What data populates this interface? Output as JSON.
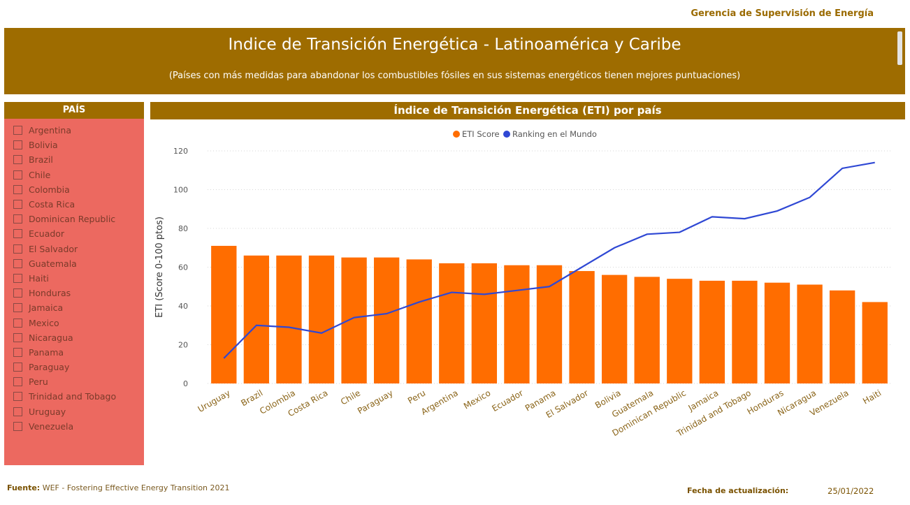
{
  "header": {
    "org": "Gerencia de Supervisión de Energía",
    "title": "Indice de Transición Energética - Latinoamérica y Caribe",
    "subtitle": "(Países con más medidas para abandonar los combustibles fósiles en sus sistemas energéticos tienen mejores puntuaciones)"
  },
  "slicer": {
    "title": "PAÍS",
    "items": [
      "Argentina",
      "Bolivia",
      "Brazil",
      "Chile",
      "Colombia",
      "Costa Rica",
      "Dominican Republic",
      "Ecuador",
      "El Salvador",
      "Guatemala",
      "Haiti",
      "Honduras",
      "Jamaica",
      "Mexico",
      "Nicaragua",
      "Panama",
      "Paraguay",
      "Peru",
      "Trinidad and Tobago",
      "Uruguay",
      "Venezuela"
    ]
  },
  "chart_header": "Índice de Transición Energética (ETI) por país",
  "chart_data": {
    "type": "bar",
    "categories": [
      "Uruguay",
      "Brazil",
      "Colombia",
      "Costa Rica",
      "Chile",
      "Paraguay",
      "Peru",
      "Argentina",
      "Mexico",
      "Ecuador",
      "Panama",
      "El Salvador",
      "Bolivia",
      "Guatemala",
      "Dominican Republic",
      "Jamaica",
      "Trinidad and Tobago",
      "Honduras",
      "Nicaragua",
      "Venezuela",
      "Haiti"
    ],
    "series": [
      {
        "name": "ETI Score",
        "type": "bar",
        "color": "#ff6d00",
        "values": [
          71,
          66,
          66,
          66,
          65,
          65,
          64,
          62,
          62,
          61,
          61,
          58,
          56,
          55,
          54,
          53,
          53,
          52,
          51,
          48,
          42
        ]
      },
      {
        "name": "Ranking en el Mundo",
        "type": "line",
        "color": "#2f48d4",
        "values": [
          13,
          30,
          29,
          26,
          34,
          36,
          42,
          47,
          46,
          48,
          50,
          60,
          70,
          77,
          78,
          86,
          85,
          89,
          96,
          111,
          114
        ]
      }
    ],
    "ylabel": "ETI (Score 0-100 ptos)",
    "ylim": [
      0,
      120
    ],
    "yticks": [
      0,
      20,
      40,
      60,
      80,
      100,
      120
    ],
    "legend_position": "top-center",
    "grid": true
  },
  "footer": {
    "source_label": "Fuente:",
    "source_text": "WEF - Fostering Effective Energy Transition 2021",
    "date_label": "Fecha de actualización:",
    "date_value": "25/01/2022"
  }
}
